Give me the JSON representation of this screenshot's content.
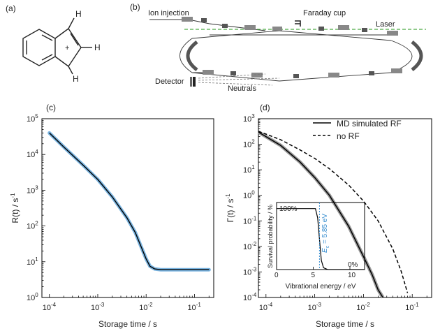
{
  "panels": {
    "a": {
      "label": "(a)",
      "atoms": [
        "H",
        "H",
        "H"
      ],
      "charge": "+"
    },
    "b": {
      "label": "(b)",
      "labels": {
        "ion_injection": "Ion injection",
        "faraday_cup": "Faraday cup",
        "laser": "Laser",
        "detector": "Detector",
        "neutrals": "Neutrals"
      }
    },
    "c": {
      "label": "(c)",
      "ylabel_main": "R(t) / s",
      "ylabel_sup": "-1",
      "xlabel": "Storage time / s",
      "yticks": [
        "10",
        "10",
        "10",
        "10",
        "10",
        "10"
      ],
      "yticks_exp": [
        "0",
        "1",
        "2",
        "3",
        "4",
        "5"
      ],
      "xticks": [
        "10",
        "10",
        "10",
        "10"
      ],
      "xticks_exp": [
        "-4",
        "-3",
        "-2",
        "-1"
      ]
    },
    "d": {
      "label": "(d)",
      "ylabel_main": "Γ(t) / s",
      "ylabel_sup": "-1",
      "xlabel": "Storage time / s",
      "yticks": [
        "10",
        "10",
        "10",
        "10",
        "10",
        "10",
        "10",
        "10"
      ],
      "yticks_exp": [
        "-4",
        "-3",
        "-2",
        "-1",
        "0",
        "1",
        "2",
        "3"
      ],
      "xticks": [
        "10",
        "10",
        "10",
        "10"
      ],
      "xticks_exp": [
        "-4",
        "-3",
        "-2",
        "-1"
      ],
      "legend": [
        "MD simulated RF",
        "no RF"
      ],
      "inset": {
        "ylabel": "Survival probability / %",
        "xlabel": "Vibrational energy / eV",
        "xticks": [
          "0",
          "5",
          "10"
        ],
        "label_100": "100%",
        "label_0": "0%",
        "ec_main": "E",
        "ec_sub": "c",
        "ec_value": " = 5.85 eV",
        "colors": {
          "annotation": "#3a8fd0"
        }
      }
    }
  },
  "chart_data": [
    {
      "panel": "c",
      "type": "line",
      "xscale": "log",
      "yscale": "log",
      "xlim": [
        7e-05,
        0.25
      ],
      "ylim": [
        1,
        100000
      ],
      "series": [
        {
          "values_x": [
            0.0001,
            0.0002,
            0.0005,
            0.001,
            0.002,
            0.004,
            0.006,
            0.008,
            0.01,
            0.012,
            0.015,
            0.02,
            0.05,
            0.1,
            0.2
          ],
          "values_y": [
            40000,
            16000,
            5000,
            2000,
            650,
            170,
            65,
            25,
            12,
            7.5,
            6.3,
            6.0,
            6.0,
            6.0,
            6.0
          ]
        }
      ]
    },
    {
      "panel": "d",
      "type": "line",
      "xscale": "log",
      "yscale": "log",
      "xlim": [
        7e-05,
        0.25
      ],
      "ylim": [
        0.0001,
        1000
      ],
      "series": [
        {
          "name": "MD simulated RF",
          "values_x": [
            7e-05,
            0.0001,
            0.0002,
            0.0005,
            0.001,
            0.002,
            0.005,
            0.01,
            0.015,
            0.02,
            0.025
          ],
          "values_y": [
            300,
            200,
            90,
            20,
            5,
            1,
            0.06,
            0.004,
            0.0008,
            0.0002,
            0.0001
          ]
        },
        {
          "name": "no RF",
          "values_x": [
            7e-05,
            0.0001,
            0.0002,
            0.0005,
            0.001,
            0.002,
            0.005,
            0.01,
            0.02,
            0.04,
            0.06,
            0.08
          ],
          "values_y": [
            320,
            250,
            150,
            60,
            28,
            11,
            2.5,
            0.6,
            0.1,
            0.008,
            0.001,
            0.00015
          ]
        }
      ],
      "inset": {
        "type": "line",
        "xlim": [
          0,
          12
        ],
        "ylim": [
          0,
          110
        ],
        "x": [
          0,
          3,
          5.3,
          5.6,
          5.85,
          6.1,
          6.4,
          7,
          12
        ],
        "y": [
          100,
          100,
          100,
          85,
          50,
          15,
          3,
          0,
          0
        ],
        "ec": 5.85
      }
    }
  ]
}
